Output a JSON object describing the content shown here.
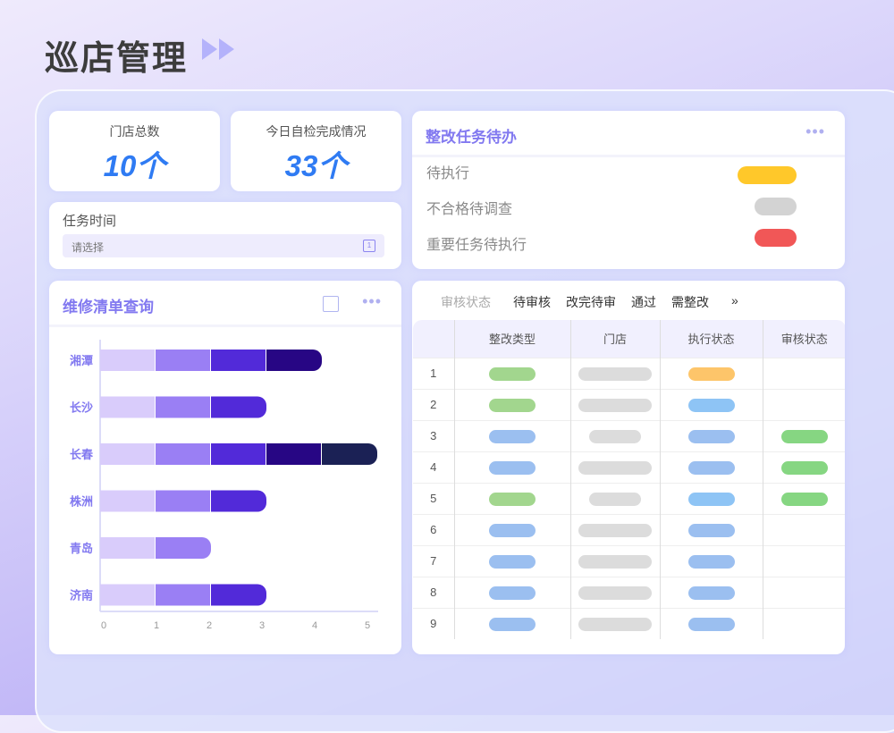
{
  "header": {
    "title": "巡店管理"
  },
  "stats": [
    {
      "label": "门店总数",
      "value": "10个"
    },
    {
      "label": "今日自检完成情况",
      "value": "33个"
    }
  ],
  "task_time": {
    "label": "任务时间",
    "placeholder": "请选择"
  },
  "todo": {
    "title": "整改任务待办",
    "items": [
      {
        "label": "待执行",
        "color": "#ffc82a"
      },
      {
        "label": "不合格待调查",
        "color": "#d3d3d3"
      },
      {
        "label": "重要任务待执行",
        "color": "#f15757"
      }
    ]
  },
  "repair": {
    "title": "维修清单查询"
  },
  "chart_data": {
    "type": "bar",
    "orientation": "horizontal",
    "stacked": true,
    "categories": [
      "湘潭",
      "长沙",
      "长春",
      "株洲",
      "青岛",
      "济南"
    ],
    "values": [
      4,
      3,
      5,
      3,
      2,
      3
    ],
    "segment_colors": [
      "#d9ccfb",
      "#9a7ff4",
      "#522ad9",
      "#270684",
      "#1b2155"
    ],
    "xlim": [
      0,
      5
    ],
    "xticks": [
      "0",
      "1",
      "2",
      "3",
      "4",
      "5"
    ]
  },
  "audit": {
    "filter_label": "审核状态",
    "filters": [
      "待审核",
      "改完待审",
      "通过",
      "需整改"
    ],
    "more": "»",
    "columns": [
      "",
      "整改类型",
      "门店",
      "执行状态",
      "审核状态"
    ],
    "rows": [
      {
        "n": "1",
        "type": "#a2d68e",
        "store": "long",
        "exec": "#fdc56a",
        "audit": ""
      },
      {
        "n": "2",
        "type": "#a2d68e",
        "store": "long",
        "exec": "#8ec4f5",
        "audit": ""
      },
      {
        "n": "3",
        "type": "#9bbff0",
        "store": "short",
        "exec": "#9bbff0",
        "audit": "#86d682"
      },
      {
        "n": "4",
        "type": "#9bbff0",
        "store": "long",
        "exec": "#9bbff0",
        "audit": "#86d682"
      },
      {
        "n": "5",
        "type": "#a2d68e",
        "store": "short",
        "exec": "#8ec4f5",
        "audit": "#86d682"
      },
      {
        "n": "6",
        "type": "#9bbff0",
        "store": "long",
        "exec": "#9bbff0",
        "audit": ""
      },
      {
        "n": "7",
        "type": "#9bbff0",
        "store": "long",
        "exec": "#9bbff0",
        "audit": ""
      },
      {
        "n": "8",
        "type": "#9bbff0",
        "store": "long",
        "exec": "#9bbff0",
        "audit": ""
      },
      {
        "n": "9",
        "type": "#9bbff0",
        "store": "long",
        "exec": "#9bbff0",
        "audit": ""
      }
    ]
  }
}
